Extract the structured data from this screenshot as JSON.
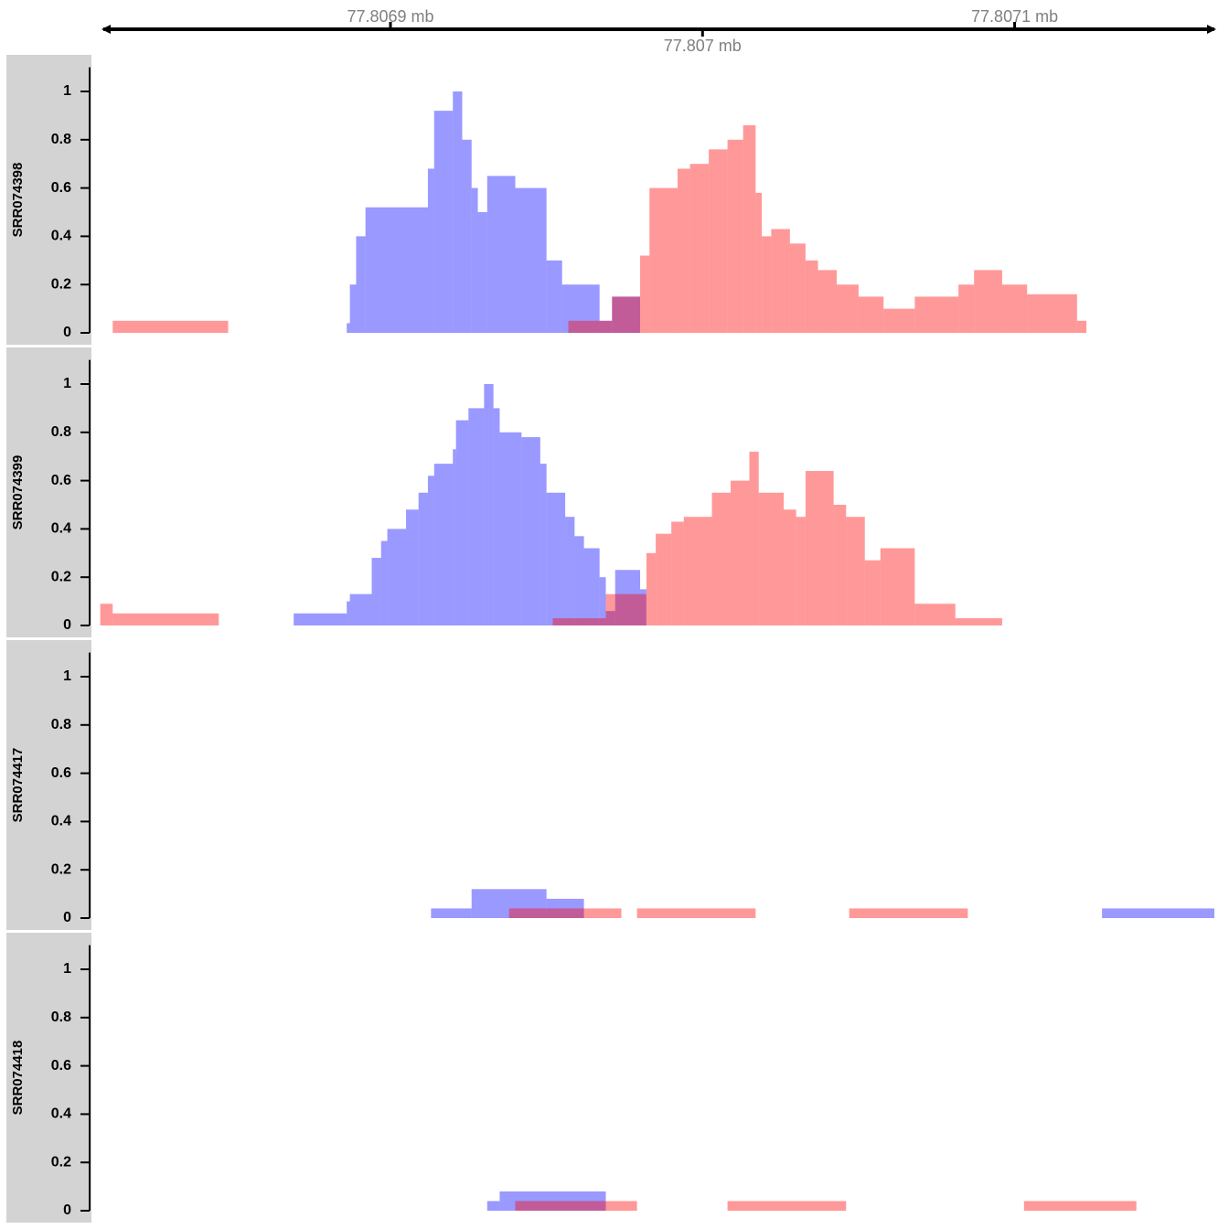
{
  "genome_axis": {
    "xlim": [
      77806808,
      77807164
    ],
    "xticks": [
      {
        "value": 77806900,
        "label": "77.8069 mb"
      },
      {
        "value": 77807000,
        "label": "77.807 mb"
      },
      {
        "value": 77807100,
        "label": "77.8071 mb"
      }
    ]
  },
  "chart_data": [
    {
      "type": "histogram",
      "title": "SRR074398",
      "ylim": [
        0,
        1.1
      ],
      "yticks": [
        0,
        0.2,
        0.4,
        0.6,
        0.8,
        1
      ],
      "series": [
        {
          "color": "#0000ff",
          "opacity": 0.4,
          "bins": [
            77806886,
            77806887,
            77806889,
            77806892,
            77806912,
            77806914,
            77806920,
            77806923,
            77806926,
            77806928,
            77806931,
            77806940,
            77806950,
            77806955,
            77806967,
            77806971,
            77806980
          ],
          "values": [
            0.04,
            0.2,
            0.4,
            0.52,
            0.68,
            0.92,
            1.0,
            0.8,
            0.6,
            0.5,
            0.65,
            0.6,
            0.3,
            0.2,
            0.05,
            0.15
          ]
        },
        {
          "color": "#ff0000",
          "opacity": 0.4,
          "bins": [
            77806811,
            77806848,
            77806957,
            77806971,
            77806980,
            77806983,
            77806992,
            77806996,
            77807002,
            77807008,
            77807013,
            77807017,
            77807019,
            77807022,
            77807028,
            77807033,
            77807037,
            77807043,
            77807050,
            77807058,
            77807068,
            77807082,
            77807087,
            77807096,
            77807104,
            77807120,
            77807123
          ],
          "values": [
            0.05,
            0,
            0.05,
            0.15,
            0.32,
            0.6,
            0.68,
            0.7,
            0.76,
            0.8,
            0.86,
            0.58,
            0.4,
            0.43,
            0.37,
            0.3,
            0.26,
            0.2,
            0.15,
            0.1,
            0.15,
            0.2,
            0.26,
            0.2,
            0.16,
            0.05
          ]
        }
      ]
    },
    {
      "type": "histogram",
      "title": "SRR074399",
      "ylim": [
        0,
        1.1
      ],
      "yticks": [
        0,
        0.2,
        0.4,
        0.6,
        0.8,
        1
      ],
      "series": [
        {
          "color": "#0000ff",
          "opacity": 0.4,
          "bins": [
            77806869,
            77806886,
            77806887,
            77806894,
            77806897,
            77806899,
            77806905,
            77806909,
            77806912,
            77806914,
            77806920,
            77806921,
            77806925,
            77806930,
            77806933,
            77806935,
            77806942,
            77806948,
            77806950,
            77806956,
            77806959,
            77806962,
            77806967,
            77806969,
            77806972,
            77806980,
            77806982
          ],
          "values": [
            0.05,
            0.1,
            0.13,
            0.28,
            0.35,
            0.4,
            0.48,
            0.55,
            0.62,
            0.67,
            0.73,
            0.85,
            0.9,
            1.0,
            0.9,
            0.8,
            0.78,
            0.67,
            0.55,
            0.45,
            0.37,
            0.32,
            0.2,
            0.06,
            0.23,
            0.15
          ]
        },
        {
          "color": "#ff0000",
          "opacity": 0.4,
          "bins": [
            77806807,
            77806811,
            77806845,
            77806952,
            77806969,
            77806982,
            77806985,
            77806990,
            77806994,
            77807003,
            77807009,
            77807015,
            77807018,
            77807026,
            77807030,
            77807033,
            77807042,
            77807046,
            77807052,
            77807057,
            77807068,
            77807081,
            77807096
          ],
          "values": [
            0.09,
            0.05,
            0,
            0.03,
            0.13,
            0.3,
            0.38,
            0.43,
            0.45,
            0.55,
            0.6,
            0.72,
            0.55,
            0.48,
            0.45,
            0.64,
            0.5,
            0.45,
            0.27,
            0.32,
            0.09,
            0.03
          ]
        }
      ]
    },
    {
      "type": "histogram",
      "title": "SRR074417",
      "ylim": [
        0,
        1.1
      ],
      "yticks": [
        0,
        0.2,
        0.4,
        0.6,
        0.8,
        1
      ],
      "series": [
        {
          "color": "#0000ff",
          "opacity": 0.4,
          "bins": [
            77806913,
            77806926,
            77806950,
            77806962,
            77807128,
            77807164
          ],
          "values": [
            0.04,
            0.12,
            0.08,
            0,
            0.04
          ]
        },
        {
          "color": "#ff0000",
          "opacity": 0.4,
          "bins": [
            77806938,
            77806974,
            77806979,
            77807017,
            77807047,
            77807085
          ],
          "values": [
            0.04,
            0,
            0.04,
            0,
            0.04
          ]
        }
      ]
    },
    {
      "type": "histogram",
      "title": "SRR074418",
      "ylim": [
        0,
        1.1
      ],
      "yticks": [
        0,
        0.2,
        0.4,
        0.6,
        0.8,
        1
      ],
      "series": [
        {
          "color": "#0000ff",
          "opacity": 0.4,
          "bins": [
            77806931,
            77806935,
            77806969
          ],
          "values": [
            0.04,
            0.08
          ]
        },
        {
          "color": "#ff0000",
          "opacity": 0.4,
          "bins": [
            77806940,
            77806979,
            77807008,
            77807046,
            77807103,
            77807139
          ],
          "values": [
            0.04,
            0,
            0.04,
            0,
            0.04
          ]
        }
      ]
    }
  ]
}
